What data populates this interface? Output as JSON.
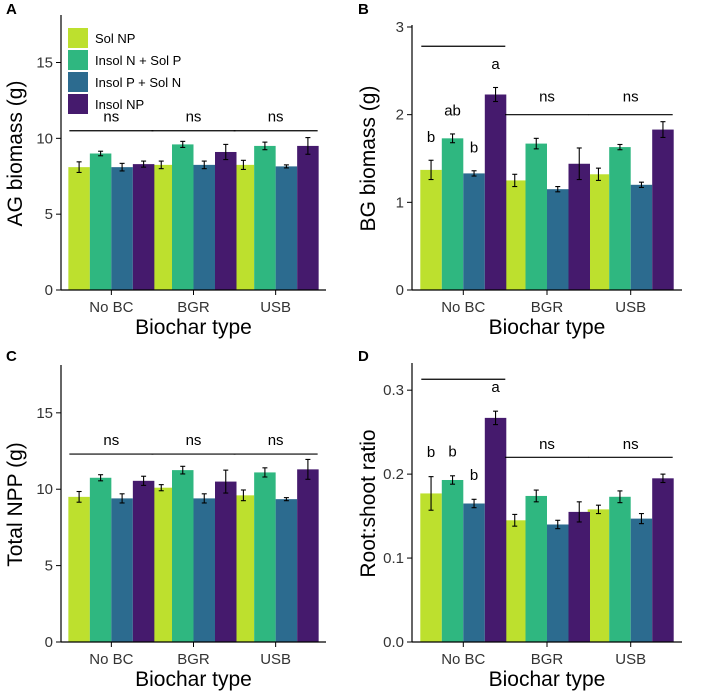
{
  "colors": {
    "Sol NP": "#bde02e",
    "Insol N + Sol P": "#2fb780",
    "Insol P + Sol N": "#2c6b8f",
    "Insol NP": "#451a6d"
  },
  "chart_data": [
    {
      "panel": "A",
      "type": "bar",
      "ylabel": "AG biomass (g)",
      "xlabel": "Biochar type",
      "ylim": [
        0,
        18
      ],
      "yticks": [
        0,
        5,
        10,
        15
      ],
      "ytick_labels": [
        "0",
        "5",
        "10",
        "15"
      ],
      "categories": [
        "No BC",
        "BGR",
        "USB"
      ],
      "series": [
        {
          "name": "Sol NP",
          "values": [
            8.1,
            8.25,
            8.25
          ],
          "errors": [
            0.35,
            0.25,
            0.3
          ]
        },
        {
          "name": "Insol N + Sol P",
          "values": [
            9.0,
            9.6,
            9.5
          ],
          "errors": [
            0.15,
            0.2,
            0.25
          ]
        },
        {
          "name": "Insol P + Sol N",
          "values": [
            8.1,
            8.25,
            8.15
          ],
          "errors": [
            0.25,
            0.25,
            0.1
          ]
        },
        {
          "name": "Insol NP",
          "values": [
            8.3,
            9.1,
            9.5
          ],
          "errors": [
            0.2,
            0.5,
            0.55
          ]
        }
      ],
      "annotations": [
        {
          "category": "No BC",
          "text": "ns",
          "value": 11.1,
          "line_value": 10.5
        },
        {
          "category": "BGR",
          "text": "ns",
          "value": 11.1,
          "line_value": 10.5
        },
        {
          "category": "USB",
          "text": "ns",
          "value": 11.1,
          "line_value": 10.5
        }
      ],
      "legend": {
        "position": "top-left",
        "entries": [
          "Sol NP",
          "Insol N + Sol P",
          "Insol P + Sol N",
          "Insol NP"
        ]
      }
    },
    {
      "panel": "B",
      "type": "bar",
      "ylabel": "BG biomass (g)",
      "xlabel": "Biochar type",
      "ylim": [
        0,
        3
      ],
      "yticks": [
        0,
        1,
        2,
        3
      ],
      "ytick_labels": [
        "0",
        "1",
        "2",
        "3"
      ],
      "categories": [
        "No BC",
        "BGR",
        "USB"
      ],
      "series": [
        {
          "name": "Sol NP",
          "values": [
            1.37,
            1.25,
            1.32
          ],
          "errors": [
            0.11,
            0.07,
            0.07
          ]
        },
        {
          "name": "Insol N + Sol P",
          "values": [
            1.73,
            1.67,
            1.63
          ],
          "errors": [
            0.05,
            0.06,
            0.03
          ]
        },
        {
          "name": "Insol P + Sol N",
          "values": [
            1.33,
            1.15,
            1.2
          ],
          "errors": [
            0.03,
            0.03,
            0.03
          ]
        },
        {
          "name": "Insol NP",
          "values": [
            2.23,
            1.44,
            1.83
          ],
          "errors": [
            0.08,
            0.18,
            0.09
          ]
        }
      ],
      "bar_letters": [
        {
          "category": "No BC",
          "series": "Sol NP",
          "text": "b"
        },
        {
          "category": "No BC",
          "series": "Insol N + Sol P",
          "text": "ab"
        },
        {
          "category": "No BC",
          "series": "Insol P + Sol N",
          "text": "b"
        },
        {
          "category": "No BC",
          "series": "Insol NP",
          "text": "a"
        }
      ],
      "annotations": [
        {
          "category": "No BC",
          "text": "",
          "line_value": 2.78
        },
        {
          "category": "BGR",
          "text": "ns",
          "value": 2.15,
          "line_value": 2.0
        },
        {
          "category": "USB",
          "text": "ns",
          "value": 2.15,
          "line_value": 2.0
        }
      ]
    },
    {
      "panel": "C",
      "type": "bar",
      "ylabel": "Total NPP (g)",
      "xlabel": "Biochar type",
      "ylim": [
        0,
        18
      ],
      "yticks": [
        0,
        5,
        10,
        15
      ],
      "ytick_labels": [
        "0",
        "5",
        "10",
        "15"
      ],
      "categories": [
        "No BC",
        "BGR",
        "USB"
      ],
      "series": [
        {
          "name": "Sol NP",
          "values": [
            9.5,
            10.1,
            9.6
          ],
          "errors": [
            0.35,
            0.2,
            0.35
          ]
        },
        {
          "name": "Insol N + Sol P",
          "values": [
            10.75,
            11.25,
            11.1
          ],
          "errors": [
            0.2,
            0.25,
            0.3
          ]
        },
        {
          "name": "Insol P + Sol N",
          "values": [
            9.4,
            9.4,
            9.35
          ],
          "errors": [
            0.3,
            0.3,
            0.1
          ]
        },
        {
          "name": "Insol NP",
          "values": [
            10.55,
            10.5,
            11.3
          ],
          "errors": [
            0.3,
            0.75,
            0.65
          ]
        }
      ],
      "annotations": [
        {
          "category": "No BC",
          "text": "ns",
          "value": 12.9,
          "line_value": 12.3
        },
        {
          "category": "BGR",
          "text": "ns",
          "value": 12.9,
          "line_value": 12.3
        },
        {
          "category": "USB",
          "text": "ns",
          "value": 12.9,
          "line_value": 12.3
        }
      ]
    },
    {
      "panel": "D",
      "type": "bar",
      "ylabel": "Root:shoot ratio",
      "xlabel": "Biochar type",
      "ylim": [
        0,
        0.33
      ],
      "yticks": [
        0,
        0.1,
        0.2,
        0.3
      ],
      "ytick_labels": [
        "0.0",
        "0.1",
        "0.2",
        "0.3"
      ],
      "categories": [
        "No BC",
        "BGR",
        "USB"
      ],
      "series": [
        {
          "name": "Sol NP",
          "values": [
            0.177,
            0.145,
            0.158
          ],
          "errors": [
            0.02,
            0.007,
            0.005
          ]
        },
        {
          "name": "Insol N + Sol P",
          "values": [
            0.193,
            0.174,
            0.173
          ],
          "errors": [
            0.005,
            0.007,
            0.007
          ]
        },
        {
          "name": "Insol P + Sol N",
          "values": [
            0.165,
            0.14,
            0.147
          ],
          "errors": [
            0.005,
            0.005,
            0.006
          ]
        },
        {
          "name": "Insol NP",
          "values": [
            0.267,
            0.155,
            0.195
          ],
          "errors": [
            0.008,
            0.012,
            0.005
          ]
        }
      ],
      "bar_letters": [
        {
          "category": "No BC",
          "series": "Sol NP",
          "text": "b"
        },
        {
          "category": "No BC",
          "series": "Insol N + Sol P",
          "text": "b"
        },
        {
          "category": "No BC",
          "series": "Insol P + Sol N",
          "text": "b"
        },
        {
          "category": "No BC",
          "series": "Insol NP",
          "text": "a"
        }
      ],
      "annotations": [
        {
          "category": "No BC",
          "text": "",
          "line_value": 0.313
        },
        {
          "category": "BGR",
          "text": "ns",
          "value": 0.23,
          "line_value": 0.22
        },
        {
          "category": "USB",
          "text": "ns",
          "value": 0.23,
          "line_value": 0.22
        }
      ]
    }
  ]
}
